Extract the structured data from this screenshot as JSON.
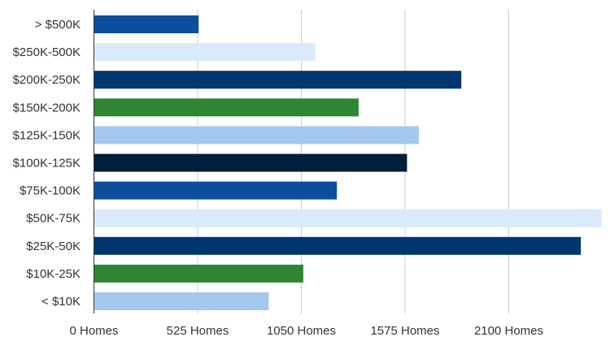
{
  "chart_data": {
    "type": "bar",
    "orientation": "horizontal",
    "title": "",
    "xlabel": "",
    "ylabel": "",
    "xlim": [
      0,
      2575
    ],
    "grid": true,
    "x_ticks": [
      {
        "value": 0,
        "label": "0 Homes"
      },
      {
        "value": 525,
        "label": "525 Homes"
      },
      {
        "value": 1050,
        "label": "1050 Homes"
      },
      {
        "value": 1575,
        "label": "1575 Homes"
      },
      {
        "value": 2100,
        "label": "2100 Homes"
      }
    ],
    "categories": [
      "> $500K",
      "$250K-500K",
      "$200K-250K",
      "$150K-200K",
      "$125K-150K",
      "$100K-125K",
      "$75K-100K",
      "$50K-75K",
      "$25K-50K",
      "$10K-25K",
      "< $10K"
    ],
    "values": [
      530,
      1120,
      1860,
      1340,
      1645,
      1585,
      1230,
      2570,
      2465,
      1060,
      885
    ],
    "colors": [
      "#0b4f9c",
      "#dbeafb",
      "#003670",
      "#2e8532",
      "#a5c9ee",
      "#001f3d",
      "#0b4f9c",
      "#dbeafb",
      "#003670",
      "#2e8532",
      "#a5c9ee"
    ]
  }
}
